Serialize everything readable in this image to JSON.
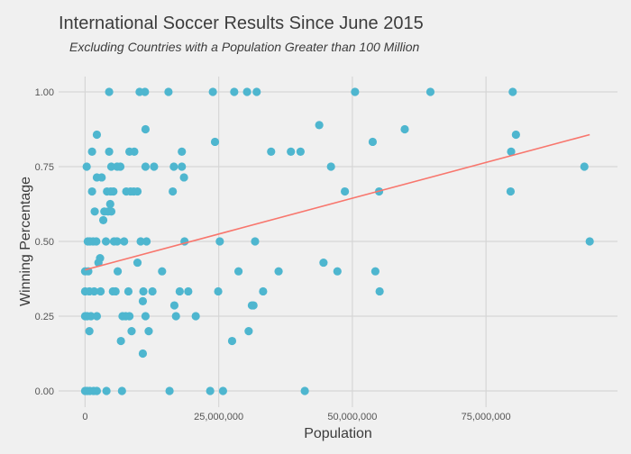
{
  "chart_data": {
    "type": "scatter",
    "title": "International Soccer Results Since June 2015",
    "subtitle": "Excluding Countries with a Population Greater than 100 Million",
    "xlabel": "Population",
    "ylabel": "Winning Percentage",
    "xlim": [
      -5000000,
      100000000
    ],
    "ylim": [
      -0.03,
      1.05
    ],
    "x_ticks": [
      0,
      25000000,
      50000000,
      75000000
    ],
    "x_tick_labels": [
      "0",
      "25,000,000",
      "50,000,000",
      "75,000,000"
    ],
    "y_ticks": [
      0,
      0.25,
      0.5,
      0.75,
      1.0
    ],
    "y_tick_labels": [
      "0.00",
      "0.25",
      "0.50",
      "0.75",
      "1.00"
    ],
    "grid": true,
    "colors": {
      "background": "#f0f0f0",
      "points": "#4eb6cf",
      "trend_line": "#f8766d",
      "grid": "#d6d6d6"
    },
    "trend_line": {
      "type": "linear",
      "x": [
        0,
        94400000
      ],
      "y": [
        0.405,
        0.857
      ]
    },
    "points_millions_note_units": "population in millions",
    "points": [
      [
        4.5,
        1
      ],
      [
        10.2,
        1
      ],
      [
        11.2,
        1
      ],
      [
        15.6,
        1
      ],
      [
        23.9,
        1
      ],
      [
        27.9,
        1
      ],
      [
        30.3,
        1
      ],
      [
        32.1,
        1
      ],
      [
        50.5,
        1
      ],
      [
        64.6,
        1
      ],
      [
        80.0,
        1
      ],
      [
        43.8,
        0.889
      ],
      [
        59.8,
        0.875
      ],
      [
        11.3,
        0.875
      ],
      [
        2.2,
        0.857
      ],
      [
        80.6,
        0.857
      ],
      [
        24.3,
        0.833
      ],
      [
        53.8,
        0.833
      ],
      [
        1.3,
        0.8
      ],
      [
        4.5,
        0.8
      ],
      [
        8.3,
        0.8
      ],
      [
        9.2,
        0.8
      ],
      [
        18.1,
        0.8
      ],
      [
        34.8,
        0.8
      ],
      [
        38.5,
        0.8
      ],
      [
        40.3,
        0.8
      ],
      [
        79.7,
        0.8
      ],
      [
        0.3,
        0.75
      ],
      [
        4.9,
        0.75
      ],
      [
        6.0,
        0.75
      ],
      [
        6.6,
        0.75
      ],
      [
        11.3,
        0.75
      ],
      [
        12.9,
        0.75
      ],
      [
        16.6,
        0.75
      ],
      [
        18.1,
        0.75
      ],
      [
        46.0,
        0.75
      ],
      [
        93.4,
        0.75
      ],
      [
        2.2,
        0.714
      ],
      [
        3.1,
        0.714
      ],
      [
        18.5,
        0.714
      ],
      [
        1.3,
        0.667
      ],
      [
        4.1,
        0.667
      ],
      [
        4.8,
        0.667
      ],
      [
        5.3,
        0.667
      ],
      [
        7.7,
        0.667
      ],
      [
        8.5,
        0.667
      ],
      [
        9.1,
        0.667
      ],
      [
        9.8,
        0.667
      ],
      [
        16.4,
        0.667
      ],
      [
        48.6,
        0.667
      ],
      [
        55.0,
        0.667
      ],
      [
        79.6,
        0.667
      ],
      [
        4.7,
        0.625
      ],
      [
        1.8,
        0.6
      ],
      [
        3.6,
        0.6
      ],
      [
        4.3,
        0.6
      ],
      [
        4.9,
        0.6
      ],
      [
        3.4,
        0.571
      ],
      [
        0.5,
        0.5
      ],
      [
        0.9,
        0.5
      ],
      [
        1.5,
        0.5
      ],
      [
        2.1,
        0.5
      ],
      [
        3.9,
        0.5
      ],
      [
        5.4,
        0.5
      ],
      [
        6.0,
        0.5
      ],
      [
        7.3,
        0.5
      ],
      [
        10.4,
        0.5
      ],
      [
        11.5,
        0.5
      ],
      [
        18.6,
        0.5
      ],
      [
        25.2,
        0.5
      ],
      [
        31.8,
        0.5
      ],
      [
        94.4,
        0.5
      ],
      [
        2.8,
        0.444
      ],
      [
        2.5,
        0.429
      ],
      [
        9.8,
        0.429
      ],
      [
        44.6,
        0.429
      ],
      [
        0.0,
        0.4
      ],
      [
        0.6,
        0.4
      ],
      [
        6.1,
        0.4
      ],
      [
        14.4,
        0.4
      ],
      [
        28.7,
        0.4
      ],
      [
        36.2,
        0.4
      ],
      [
        47.2,
        0.4
      ],
      [
        54.3,
        0.4
      ],
      [
        0.0,
        0.333
      ],
      [
        0.8,
        0.333
      ],
      [
        1.7,
        0.333
      ],
      [
        2.9,
        0.333
      ],
      [
        5.2,
        0.333
      ],
      [
        5.7,
        0.333
      ],
      [
        8.1,
        0.333
      ],
      [
        10.9,
        0.333
      ],
      [
        12.6,
        0.333
      ],
      [
        17.7,
        0.333
      ],
      [
        19.3,
        0.333
      ],
      [
        24.9,
        0.333
      ],
      [
        33.3,
        0.333
      ],
      [
        55.1,
        0.333
      ],
      [
        10.8,
        0.3
      ],
      [
        16.7,
        0.286
      ],
      [
        31.2,
        0.286
      ],
      [
        31.5,
        0.286
      ],
      [
        0.0,
        0.25
      ],
      [
        0.4,
        0.25
      ],
      [
        1.1,
        0.25
      ],
      [
        2.2,
        0.25
      ],
      [
        7.0,
        0.25
      ],
      [
        7.6,
        0.25
      ],
      [
        8.3,
        0.25
      ],
      [
        11.3,
        0.25
      ],
      [
        17.0,
        0.25
      ],
      [
        20.7,
        0.25
      ],
      [
        0.8,
        0.2
      ],
      [
        8.7,
        0.2
      ],
      [
        11.9,
        0.2
      ],
      [
        30.6,
        0.2
      ],
      [
        6.7,
        0.167
      ],
      [
        27.5,
        0.167
      ],
      [
        10.8,
        0.125
      ],
      [
        0.0,
        0
      ],
      [
        0.4,
        0
      ],
      [
        0.9,
        0
      ],
      [
        1.6,
        0
      ],
      [
        2.2,
        0
      ],
      [
        4.0,
        0
      ],
      [
        6.9,
        0
      ],
      [
        15.8,
        0
      ],
      [
        23.4,
        0
      ],
      [
        25.8,
        0
      ],
      [
        41.1,
        0
      ]
    ]
  }
}
